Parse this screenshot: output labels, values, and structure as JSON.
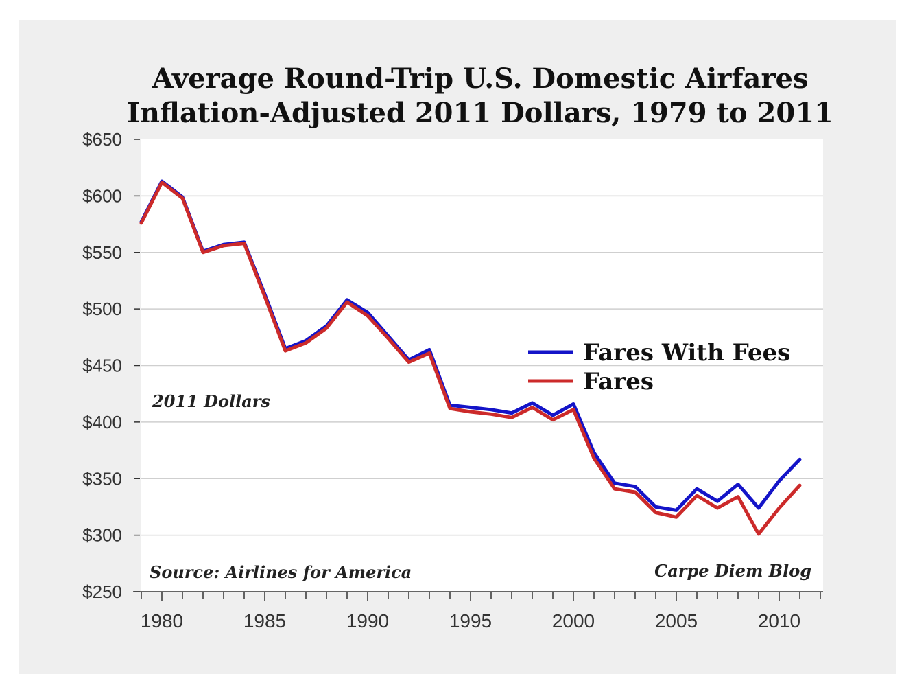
{
  "chart_data": {
    "type": "line",
    "title": "Average Round-Trip U.S. Domestic Airfares",
    "subtitle": "Inflation-Adjusted 2011 Dollars, 1979 to 2011",
    "xlabel": "",
    "ylabel": "",
    "x": [
      1979,
      1980,
      1981,
      1982,
      1983,
      1984,
      1985,
      1986,
      1987,
      1988,
      1989,
      1990,
      1991,
      1992,
      1993,
      1994,
      1995,
      1996,
      1997,
      1998,
      1999,
      2000,
      2001,
      2002,
      2003,
      2004,
      2005,
      2006,
      2007,
      2008,
      2009,
      2010,
      2011
    ],
    "xlim": [
      1979,
      2012
    ],
    "ylim": [
      250,
      650
    ],
    "x_ticks": [
      1980,
      1985,
      1990,
      1995,
      2000,
      2005,
      2010
    ],
    "y_ticks": [
      {
        "value": 250,
        "label": "$250"
      },
      {
        "value": 300,
        "label": "$300"
      },
      {
        "value": 350,
        "label": "$350"
      },
      {
        "value": 400,
        "label": "$400"
      },
      {
        "value": 450,
        "label": "$450"
      },
      {
        "value": 500,
        "label": "$500"
      },
      {
        "value": 550,
        "label": "$550"
      },
      {
        "value": 600,
        "label": "$600"
      },
      {
        "value": 650,
        "label": "$650"
      }
    ],
    "grid": "horizontal",
    "legend_position": "center-right",
    "series": [
      {
        "name": "Fares With Fees",
        "color": "#1414c8",
        "values": [
          577,
          613,
          599,
          551,
          557,
          559,
          513,
          465,
          472,
          485,
          508,
          497,
          476,
          455,
          464,
          415,
          413,
          411,
          408,
          417,
          406,
          416,
          373,
          346,
          343,
          325,
          322,
          341,
          330,
          345,
          324,
          348,
          367
        ]
      },
      {
        "name": "Fares",
        "color": "#cc2a2a",
        "values": [
          576,
          612,
          598,
          550,
          556,
          558,
          511,
          463,
          470,
          483,
          506,
          494,
          474,
          453,
          461,
          412,
          409,
          407,
          404,
          413,
          402,
          411,
          368,
          341,
          338,
          320,
          316,
          335,
          324,
          334,
          301,
          324,
          344
        ]
      }
    ],
    "annotations": [
      {
        "text": "2011 Dollars",
        "position": "left-middle"
      },
      {
        "text": "Source: Airlines for America",
        "position": "bottom-left"
      },
      {
        "text": "Carpe Diem Blog",
        "position": "bottom-right"
      }
    ],
    "colors": {
      "frame_background": "#efefef",
      "plot_background": "#ffffff",
      "gridline": "#cfcfcf"
    }
  }
}
